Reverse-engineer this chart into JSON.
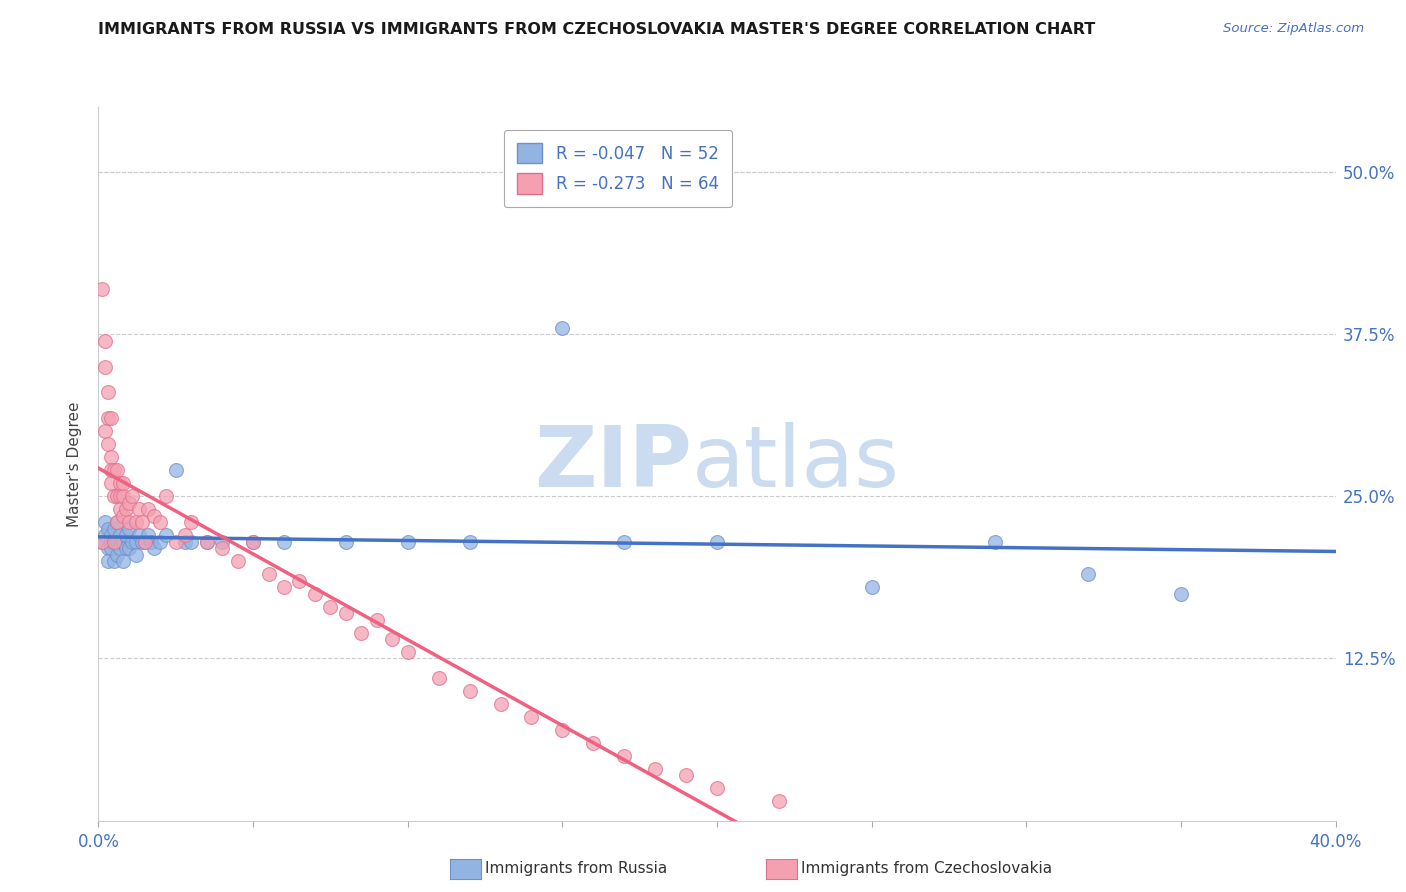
{
  "title": "IMMIGRANTS FROM RUSSIA VS IMMIGRANTS FROM CZECHOSLOVAKIA MASTER'S DEGREE CORRELATION CHART",
  "source_text": "Source: ZipAtlas.com",
  "ylabel": "Master's Degree",
  "ytick_labels": [
    "12.5%",
    "25.0%",
    "37.5%",
    "50.0%"
  ],
  "ytick_values": [
    0.125,
    0.25,
    0.375,
    0.5
  ],
  "legend_russia_r": "R = -0.047",
  "legend_russia_n": "N = 52",
  "legend_czech_r": "R = -0.273",
  "legend_czech_n": "N = 64",
  "legend_label_russia": "Immigrants from Russia",
  "legend_label_czech": "Immigrants from Czechoslovakia",
  "color_russia": "#92b4e3",
  "color_czech": "#f4a0b0",
  "color_russia_line": "#4472c4",
  "color_czech_line": "#f06080",
  "watermark_color": "#ccdcf0",
  "xlim": [
    0.0,
    0.4
  ],
  "ylim": [
    0.0,
    0.55
  ],
  "russia_x": [
    0.001,
    0.002,
    0.002,
    0.003,
    0.003,
    0.003,
    0.004,
    0.004,
    0.004,
    0.005,
    0.005,
    0.005,
    0.006,
    0.006,
    0.006,
    0.007,
    0.007,
    0.007,
    0.008,
    0.008,
    0.009,
    0.009,
    0.01,
    0.01,
    0.011,
    0.012,
    0.012,
    0.013,
    0.014,
    0.015,
    0.016,
    0.017,
    0.018,
    0.02,
    0.022,
    0.025,
    0.028,
    0.03,
    0.035,
    0.04,
    0.05,
    0.06,
    0.08,
    0.1,
    0.12,
    0.15,
    0.17,
    0.2,
    0.25,
    0.29,
    0.32,
    0.35
  ],
  "russia_y": [
    0.215,
    0.22,
    0.23,
    0.21,
    0.225,
    0.2,
    0.215,
    0.22,
    0.21,
    0.215,
    0.2,
    0.225,
    0.215,
    0.205,
    0.23,
    0.215,
    0.22,
    0.21,
    0.215,
    0.2,
    0.21,
    0.22,
    0.21,
    0.225,
    0.215,
    0.215,
    0.205,
    0.22,
    0.215,
    0.215,
    0.22,
    0.215,
    0.21,
    0.215,
    0.22,
    0.27,
    0.215,
    0.215,
    0.215,
    0.215,
    0.215,
    0.215,
    0.215,
    0.215,
    0.215,
    0.38,
    0.215,
    0.215,
    0.18,
    0.215,
    0.19,
    0.175
  ],
  "czech_x": [
    0.001,
    0.001,
    0.002,
    0.002,
    0.002,
    0.003,
    0.003,
    0.003,
    0.004,
    0.004,
    0.004,
    0.004,
    0.005,
    0.005,
    0.005,
    0.006,
    0.006,
    0.006,
    0.007,
    0.007,
    0.007,
    0.008,
    0.008,
    0.008,
    0.009,
    0.01,
    0.01,
    0.011,
    0.012,
    0.013,
    0.014,
    0.015,
    0.016,
    0.018,
    0.02,
    0.022,
    0.025,
    0.028,
    0.03,
    0.035,
    0.04,
    0.045,
    0.05,
    0.055,
    0.06,
    0.065,
    0.07,
    0.075,
    0.08,
    0.085,
    0.09,
    0.095,
    0.1,
    0.11,
    0.12,
    0.13,
    0.14,
    0.15,
    0.16,
    0.17,
    0.18,
    0.19,
    0.2,
    0.22
  ],
  "czech_y": [
    0.215,
    0.41,
    0.35,
    0.3,
    0.37,
    0.31,
    0.33,
    0.29,
    0.26,
    0.28,
    0.31,
    0.27,
    0.25,
    0.27,
    0.215,
    0.25,
    0.27,
    0.23,
    0.25,
    0.24,
    0.26,
    0.25,
    0.235,
    0.26,
    0.24,
    0.245,
    0.23,
    0.25,
    0.23,
    0.24,
    0.23,
    0.215,
    0.24,
    0.235,
    0.23,
    0.25,
    0.215,
    0.22,
    0.23,
    0.215,
    0.21,
    0.2,
    0.215,
    0.19,
    0.18,
    0.185,
    0.175,
    0.165,
    0.16,
    0.145,
    0.155,
    0.14,
    0.13,
    0.11,
    0.1,
    0.09,
    0.08,
    0.07,
    0.06,
    0.05,
    0.04,
    0.035,
    0.025,
    0.015
  ]
}
